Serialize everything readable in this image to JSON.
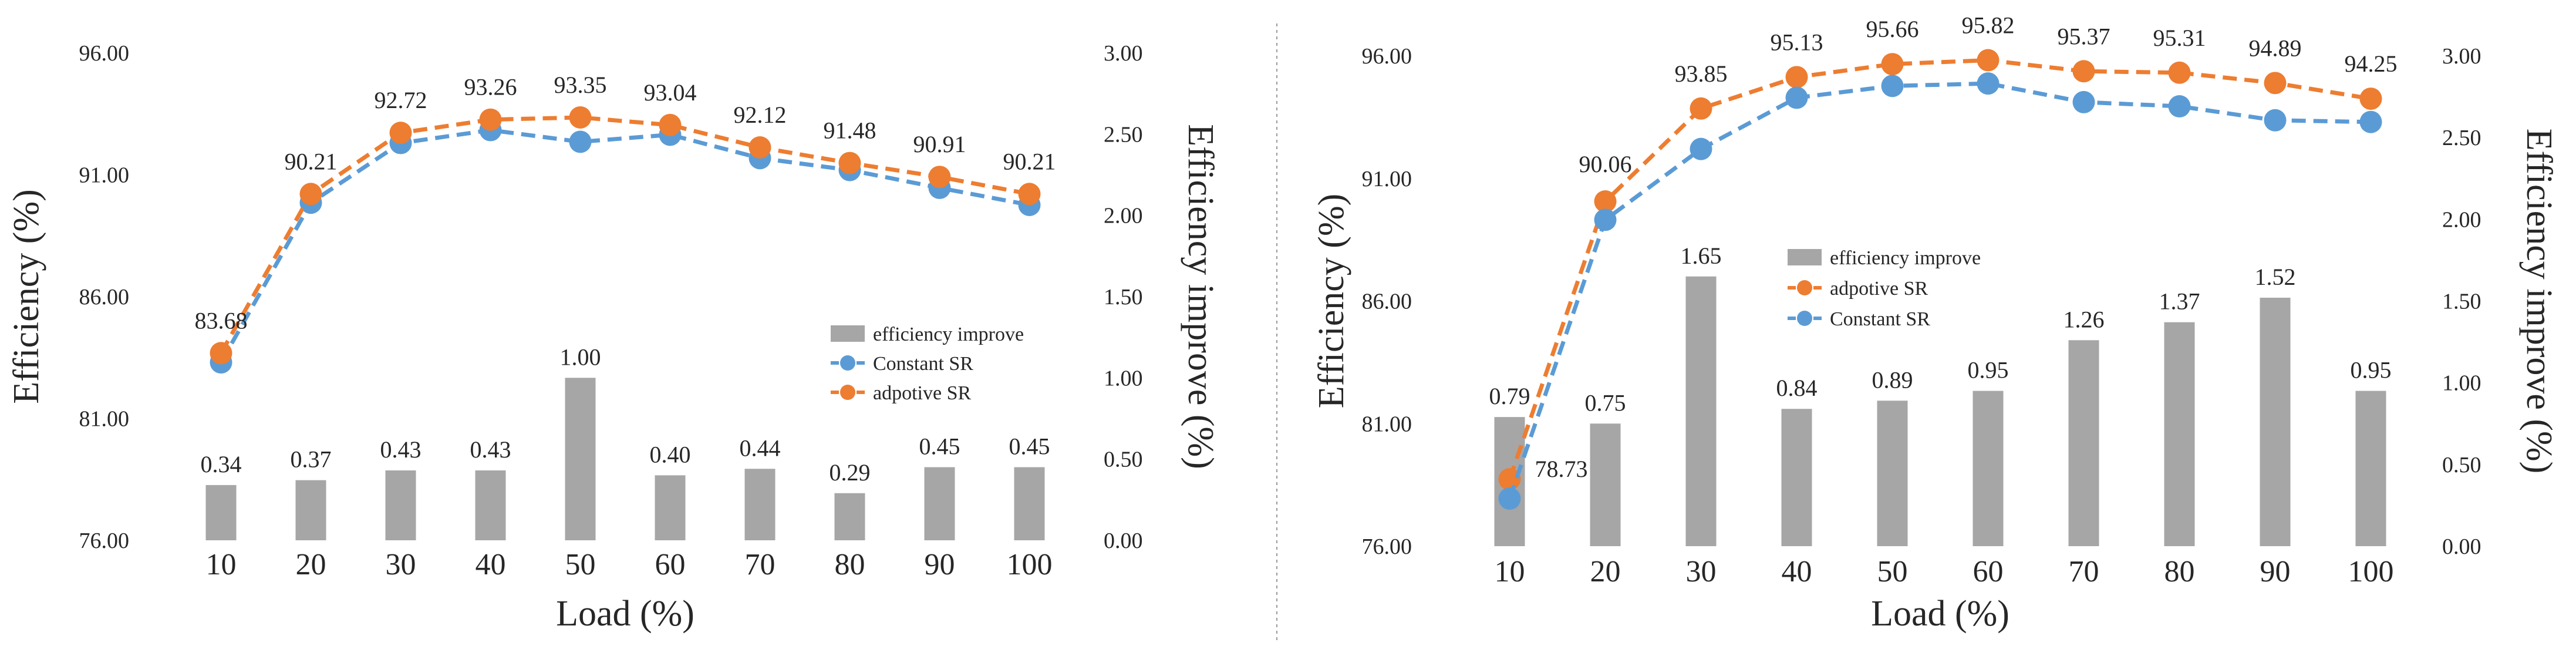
{
  "chart_data": [
    {
      "type": "bar+line",
      "title": "",
      "xlabel": "Load (%)",
      "ylabel": "Efficiency (%)",
      "y2label": "Efficiency improve (%)",
      "categories": [
        "10",
        "20",
        "30",
        "40",
        "50",
        "60",
        "70",
        "80",
        "90",
        "100"
      ],
      "ylim": [
        76,
        96
      ],
      "yticks": [
        "76.00",
        "81.00",
        "86.00",
        "91.00",
        "96.00"
      ],
      "y2lim": [
        0,
        3
      ],
      "y2ticks": [
        "0.00",
        "0.50",
        "1.00",
        "1.50",
        "2.00",
        "2.50",
        "3.00"
      ],
      "legend": [
        "efficiency improve",
        "Constant SR",
        "adpotive SR"
      ],
      "legend_position": "center-right",
      "series": [
        {
          "name": "efficiency improve",
          "kind": "bar",
          "axis": "right",
          "color": "#a6a6a6",
          "values": [
            0.34,
            0.37,
            0.43,
            0.43,
            1.0,
            0.4,
            0.44,
            0.29,
            0.45,
            0.45
          ],
          "labels": [
            "0.34",
            "0.37",
            "0.43",
            "0.43",
            "1.00",
            "0.40",
            "0.44",
            "0.29",
            "0.45",
            "0.45"
          ]
        },
        {
          "name": "Constant SR",
          "kind": "line",
          "axis": "left",
          "color": "#5b9bd5",
          "values": [
            83.3,
            89.85,
            92.3,
            92.83,
            92.35,
            92.64,
            91.68,
            91.19,
            90.46,
            89.76
          ]
        },
        {
          "name": "adpotive SR",
          "kind": "line",
          "axis": "left",
          "color": "#ed7d31",
          "values": [
            83.68,
            90.21,
            92.72,
            93.26,
            93.35,
            93.04,
            92.12,
            91.48,
            90.91,
            90.21
          ],
          "labels": [
            "83.68",
            "90.21",
            "92.72",
            "93.26",
            "93.35",
            "93.04",
            "92.12",
            "91.48",
            "90.91",
            "90.21"
          ]
        }
      ]
    },
    {
      "type": "bar+line",
      "title": "",
      "xlabel": "Load (%)",
      "ylabel": "Efficiency (%)",
      "y2label": "Efficiency improve (%)",
      "categories": [
        "10",
        "20",
        "30",
        "40",
        "50",
        "60",
        "70",
        "80",
        "90",
        "100"
      ],
      "ylim": [
        76,
        96
      ],
      "yticks": [
        "76.00",
        "81.00",
        "86.00",
        "91.00",
        "96.00"
      ],
      "y2lim": [
        0,
        3
      ],
      "y2ticks": [
        "0.00",
        "0.50",
        "1.00",
        "1.50",
        "2.00",
        "2.50",
        "3.00"
      ],
      "legend": [
        "efficiency improve",
        "adpotive SR",
        "Constant SR"
      ],
      "legend_position": "center",
      "series": [
        {
          "name": "efficiency improve",
          "kind": "bar",
          "axis": "right",
          "color": "#a6a6a6",
          "values": [
            0.79,
            0.75,
            1.65,
            0.84,
            0.89,
            0.95,
            1.26,
            1.37,
            1.52,
            0.95
          ],
          "labels": [
            "0.79",
            "0.75",
            "1.65",
            "0.84",
            "0.89",
            "0.95",
            "1.26",
            "1.37",
            "1.52",
            "0.95"
          ]
        },
        {
          "name": "adpotive SR",
          "kind": "line",
          "axis": "left",
          "color": "#ed7d31",
          "values": [
            78.73,
            90.06,
            93.85,
            95.13,
            95.66,
            95.82,
            95.37,
            95.31,
            94.89,
            94.25
          ],
          "labels": [
            "78.73",
            "90.06",
            "93.85",
            "95.13",
            "95.66",
            "95.82",
            "95.37",
            "95.31",
            "94.89",
            "94.25"
          ]
        },
        {
          "name": "Constant SR",
          "kind": "line",
          "axis": "left",
          "color": "#5b9bd5",
          "values": [
            77.94,
            89.31,
            92.2,
            94.29,
            94.77,
            94.87,
            94.11,
            93.94,
            93.37,
            93.3
          ]
        }
      ]
    }
  ]
}
